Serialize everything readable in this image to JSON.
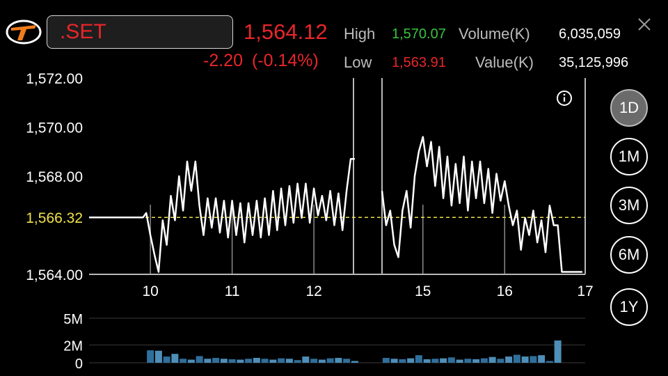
{
  "header": {
    "symbol": ".SET",
    "price": "1,564.12",
    "change": "-2.20",
    "change_pct": "(-0.14%)",
    "high_label": "High",
    "high_value": "1,570.07",
    "low_label": "Low",
    "low_value": "1,563.91",
    "volume_label": "Volume(K)",
    "volume_value": "6,035,059",
    "value_label": "Value(K)",
    "value_value": "35,125,996"
  },
  "periods": [
    {
      "label": "1D",
      "active": true
    },
    {
      "label": "1M",
      "active": false
    },
    {
      "label": "3M",
      "active": false
    },
    {
      "label": "6M",
      "active": false
    },
    {
      "label": "1Y",
      "active": false
    }
  ],
  "icons": {
    "logo": "brand-logo",
    "close": "close-icon",
    "info": "info-icon"
  },
  "colors": {
    "up": "#37c43d",
    "down": "#e8262a",
    "reference": "#f0e24a",
    "line": "#ffffff",
    "volume": "#2f6f9c"
  },
  "chart_data": [
    {
      "type": "line",
      "ylim": [
        1564.0,
        1572.0
      ],
      "yticks": [
        "1,572.00",
        "1,570.00",
        "1,568.00",
        "1,564.00"
      ],
      "reference_label": "1,566.32",
      "reference_value": 1566.32,
      "xlim": [
        9.25,
        17
      ],
      "xticks": [
        "10",
        "11",
        "12",
        "15",
        "16",
        "17"
      ],
      "session_gaps": [
        12.5,
        14.5
      ],
      "series": [
        {
          "x": [
            9.25,
            9.91,
            9.95,
            10,
            10.05,
            10.1,
            10.15,
            10.2,
            10.25,
            10.3,
            10.35,
            10.4,
            10.45,
            10.5,
            10.55,
            10.6,
            10.65,
            10.7,
            10.75,
            10.8,
            10.85,
            10.9,
            10.95,
            11,
            11.05,
            11.1,
            11.15,
            11.2,
            11.25,
            11.3,
            11.35,
            11.4,
            11.45,
            11.5,
            11.55,
            11.6,
            11.65,
            11.7,
            11.75,
            11.8,
            11.85,
            11.9,
            11.95,
            12,
            12.05,
            12.1,
            12.15,
            12.2,
            12.25,
            12.3,
            12.35,
            12.4,
            12.45,
            12.5,
            14.5,
            14.55,
            14.6,
            14.65,
            14.7,
            14.75,
            14.8,
            14.85,
            14.9,
            14.95,
            15,
            15.05,
            15.1,
            15.15,
            15.2,
            15.25,
            15.3,
            15.35,
            15.4,
            15.45,
            15.5,
            15.55,
            15.6,
            15.65,
            15.7,
            15.75,
            15.8,
            15.85,
            15.9,
            15.95,
            16,
            16.05,
            16.1,
            16.15,
            16.2,
            16.25,
            16.3,
            16.35,
            16.4,
            16.45,
            16.5,
            16.55,
            16.6,
            16.65,
            16.7,
            16.75,
            16.8,
            16.85,
            16.9,
            16.95
          ],
          "y": [
            1566.32,
            1566.32,
            1566.5,
            1565.6,
            1564.8,
            1564.1,
            1566.2,
            1565.2,
            1567.2,
            1566.2,
            1568.0,
            1566.6,
            1568.6,
            1567.4,
            1568.6,
            1566.8,
            1565.6,
            1567.1,
            1565.9,
            1567.1,
            1565.7,
            1567.0,
            1565.5,
            1567.0,
            1565.6,
            1566.9,
            1565.3,
            1566.9,
            1565.6,
            1567.0,
            1565.5,
            1567.1,
            1565.6,
            1567.4,
            1565.8,
            1567.5,
            1566.0,
            1567.6,
            1566.1,
            1567.7,
            1566.3,
            1567.7,
            1566.1,
            1567.5,
            1566.4,
            1567.2,
            1566.2,
            1567.4,
            1566.0,
            1567.3,
            1565.8,
            1567.4,
            1568.7,
            1568.7,
            1567.4,
            1566.0,
            1566.6,
            1565.2,
            1564.7,
            1566.6,
            1567.4,
            1565.9,
            1568.0,
            1569.0,
            1569.6,
            1568.4,
            1569.4,
            1567.6,
            1569.2,
            1567.1,
            1568.8,
            1566.8,
            1568.5,
            1566.9,
            1568.8,
            1566.6,
            1568.6,
            1567.1,
            1568.6,
            1566.9,
            1568.3,
            1566.5,
            1568.1,
            1567.0,
            1567.8,
            1566.8,
            1566.0,
            1566.6,
            1565.0,
            1566.3,
            1565.6,
            1566.6,
            1565.3,
            1566.2,
            1564.9,
            1566.8,
            1566.0,
            1566.0,
            1564.1,
            1564.1,
            1564.1,
            1564.1,
            1564.1,
            1564.1
          ]
        }
      ]
    },
    {
      "type": "bar",
      "ylim": [
        0,
        5
      ],
      "yticks": [
        "5M",
        "2M",
        "0"
      ],
      "series": [
        {
          "x": [
            10,
            10.1,
            10.2,
            10.3,
            10.4,
            10.5,
            10.6,
            10.7,
            10.8,
            10.9,
            11,
            11.1,
            11.2,
            11.3,
            11.4,
            11.5,
            11.6,
            11.7,
            11.8,
            11.9,
            12,
            12.1,
            12.2,
            12.3,
            12.4,
            12.5,
            14.55,
            14.65,
            14.75,
            14.85,
            14.95,
            15.05,
            15.15,
            15.25,
            15.35,
            15.45,
            15.55,
            15.65,
            15.75,
            15.85,
            15.95,
            16.05,
            16.15,
            16.25,
            16.35,
            16.45,
            16.55,
            16.65,
            16.75
          ],
          "values": [
            1.4,
            1.35,
            0.7,
            1.0,
            0.45,
            0.35,
            0.75,
            0.45,
            0.55,
            0.45,
            0.4,
            0.35,
            0.45,
            0.55,
            0.45,
            0.35,
            0.5,
            0.45,
            0.3,
            0.7,
            0.45,
            0.35,
            0.5,
            0.55,
            0.45,
            0.2,
            0.55,
            0.45,
            0.4,
            0.5,
            0.85,
            0.4,
            0.45,
            0.5,
            0.6,
            0.35,
            0.45,
            0.4,
            0.5,
            0.65,
            0.45,
            0.7,
            0.9,
            0.7,
            0.75,
            0.85,
            0.2,
            2.5,
            0
          ],
          "colors_alt": true
        }
      ]
    }
  ]
}
